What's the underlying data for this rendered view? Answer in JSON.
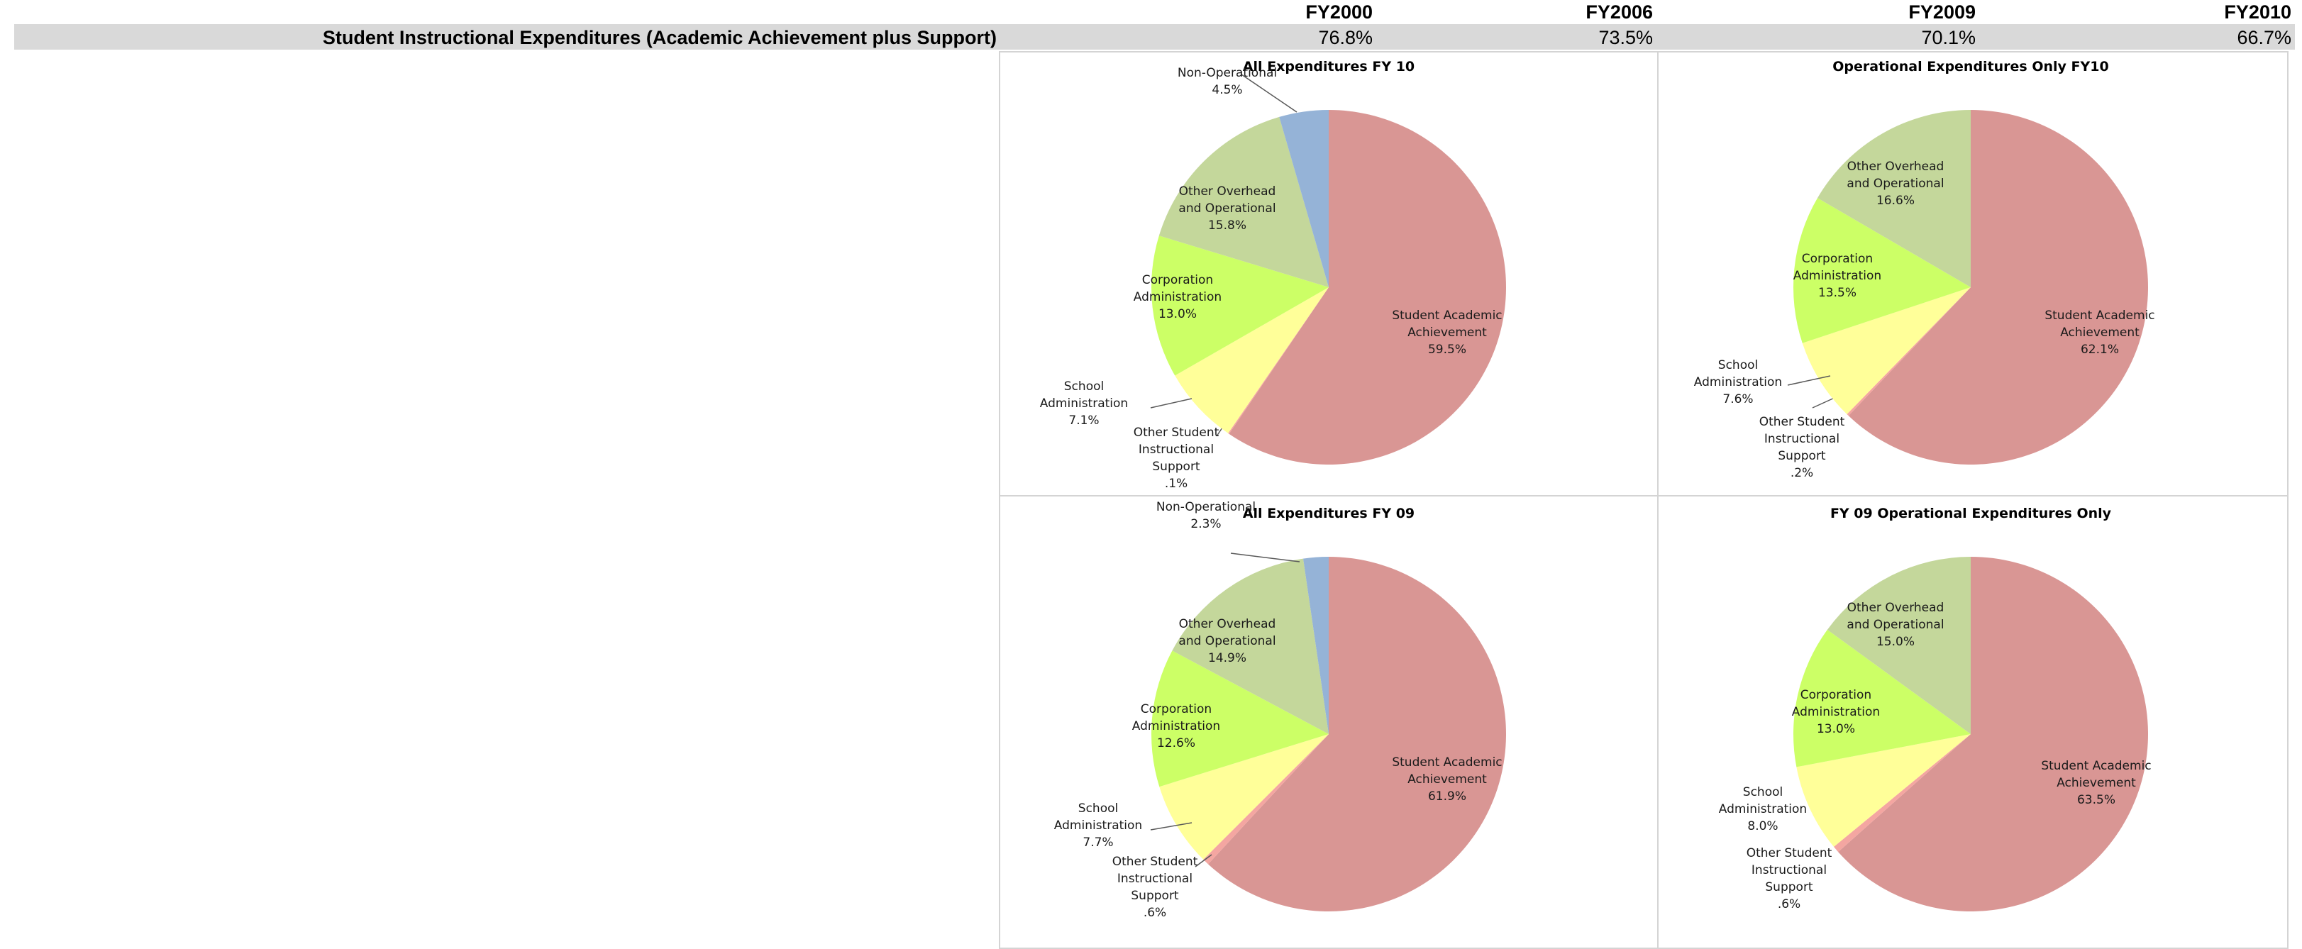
{
  "header": {
    "years": [
      "FY2000",
      "FY2006",
      "FY2009",
      "FY2010"
    ]
  },
  "row": {
    "label": "Student Instructional Expenditures (Academic Achievement plus Support)",
    "values": [
      "76.8%",
      "73.5%",
      "70.1%",
      "66.7%"
    ]
  },
  "colors": {
    "student_academic": "#d99694",
    "other_student_support": "#f4a6a1",
    "school_admin": "#ffff99",
    "corp_admin": "#ccff66",
    "other_overhead": "#c4d79b",
    "non_operational": "#95b3d7"
  },
  "chart_data": [
    {
      "type": "pie",
      "title": "All Expenditures FY 10",
      "slices": [
        {
          "label": "Student Academic Achievement",
          "pct_text": "59.5%",
          "value": 59.5,
          "color_key": "student_academic"
        },
        {
          "label": "Other Student Instructional Support",
          "pct_text": ".1%",
          "value": 0.1,
          "color_key": "other_student_support"
        },
        {
          "label": "School Administration",
          "pct_text": "7.1%",
          "value": 7.1,
          "color_key": "school_admin"
        },
        {
          "label": "Corporation Administration",
          "pct_text": "13.0%",
          "value": 13.0,
          "color_key": "corp_admin"
        },
        {
          "label": "Other Overhead and Operational",
          "pct_text": "15.8%",
          "value": 15.8,
          "color_key": "other_overhead"
        },
        {
          "label": "Non-Operational",
          "pct_text": "4.5%",
          "value": 4.5,
          "color_key": "non_operational"
        }
      ]
    },
    {
      "type": "pie",
      "title": "Operational Expenditures Only FY10",
      "slices": [
        {
          "label": "Student Academic Achievement",
          "pct_text": "62.1%",
          "value": 62.1,
          "color_key": "student_academic"
        },
        {
          "label": "Other Student Instructional Support",
          "pct_text": ".2%",
          "value": 0.2,
          "color_key": "other_student_support"
        },
        {
          "label": "School Administration",
          "pct_text": "7.6%",
          "value": 7.6,
          "color_key": "school_admin"
        },
        {
          "label": "Corporation Administration",
          "pct_text": "13.5%",
          "value": 13.5,
          "color_key": "corp_admin"
        },
        {
          "label": "Other Overhead and Operational",
          "pct_text": "16.6%",
          "value": 16.6,
          "color_key": "other_overhead"
        }
      ]
    },
    {
      "type": "pie",
      "title": "All Expenditures FY 09",
      "slices": [
        {
          "label": "Student Academic Achievement",
          "pct_text": "61.9%",
          "value": 61.9,
          "color_key": "student_academic"
        },
        {
          "label": "Other Student Instructional Support",
          "pct_text": ".6%",
          "value": 0.6,
          "color_key": "other_student_support"
        },
        {
          "label": "School Administration",
          "pct_text": "7.7%",
          "value": 7.7,
          "color_key": "school_admin"
        },
        {
          "label": "Corporation Administration",
          "pct_text": "12.6%",
          "value": 12.6,
          "color_key": "corp_admin"
        },
        {
          "label": "Other Overhead and Operational",
          "pct_text": "14.9%",
          "value": 14.9,
          "color_key": "other_overhead"
        },
        {
          "label": "Non-Operational",
          "pct_text": "2.3%",
          "value": 2.3,
          "color_key": "non_operational"
        }
      ]
    },
    {
      "type": "pie",
      "title": "FY 09 Operational Expenditures Only",
      "slices": [
        {
          "label": "Student Academic Achievement",
          "pct_text": "63.5%",
          "value": 63.5,
          "color_key": "student_academic"
        },
        {
          "label": "Other Student Instructional Support",
          "pct_text": ".6%",
          "value": 0.6,
          "color_key": "other_student_support"
        },
        {
          "label": "School Administration",
          "pct_text": "8.0%",
          "value": 8.0,
          "color_key": "school_admin"
        },
        {
          "label": "Corporation Administration",
          "pct_text": "13.0%",
          "value": 13.0,
          "color_key": "corp_admin"
        },
        {
          "label": "Other Overhead and Operational",
          "pct_text": "15.0%",
          "value": 15.0,
          "color_key": "other_overhead"
        }
      ]
    }
  ]
}
